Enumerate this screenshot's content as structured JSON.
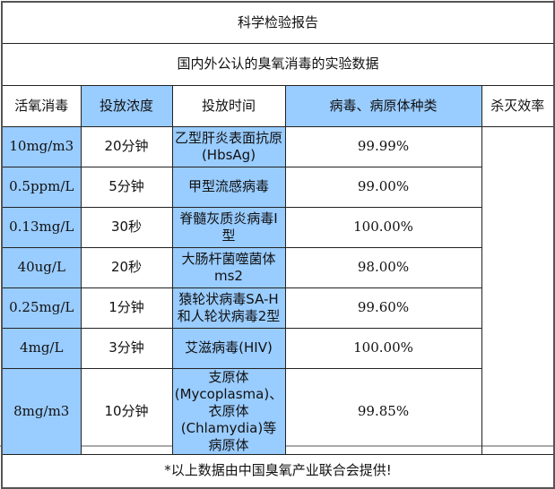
{
  "title": "科学检验报告",
  "subtitle": "国内外公认的臭氧消毒的实验数据",
  "group_label": "活氧消毒",
  "headers": [
    "投放浓度",
    "投放时间",
    "病毒、病原体种类",
    "杀灭效率"
  ],
  "rows": [
    {
      "concentration": "10mg/m3",
      "time": "20分钟",
      "pathogen": "乙型肝炎表面抗原(HbsAg)",
      "efficiency": "99.99%"
    },
    {
      "concentration": "0.5ppm/L",
      "time": "5分钟",
      "pathogen": "甲型流感病毒",
      "efficiency": "99.00%"
    },
    {
      "concentration": "0.13mg/L",
      "time": "30秒",
      "pathogen": "脊髓灰质炎病毒I型",
      "efficiency": "100.00%"
    },
    {
      "concentration": "40ug/L",
      "time": "20秒",
      "pathogen": "大肠杆菌噬菌体ms2",
      "efficiency": "98.00%"
    },
    {
      "concentration": "0.25mg/L",
      "time": "1分钟",
      "pathogen": "猿轮状病毒SA-H和人轮状病毒2型",
      "efficiency": "99.60%"
    },
    {
      "concentration": "4mg/L",
      "time": "3分钟",
      "pathogen": "艾滋病毒(HIV)",
      "efficiency": "100.00%"
    },
    {
      "concentration": "8mg/m3",
      "time": "10分钟",
      "pathogen": "支原体(Mycoplasma)、衣原体(Chlamydia)等病原体",
      "efficiency": "99.85%"
    }
  ],
  "footer": "*以上数据由中国臭氧产业联合会提供!",
  "colors": {
    "highlight": "#99ccff",
    "border": "#222222"
  }
}
